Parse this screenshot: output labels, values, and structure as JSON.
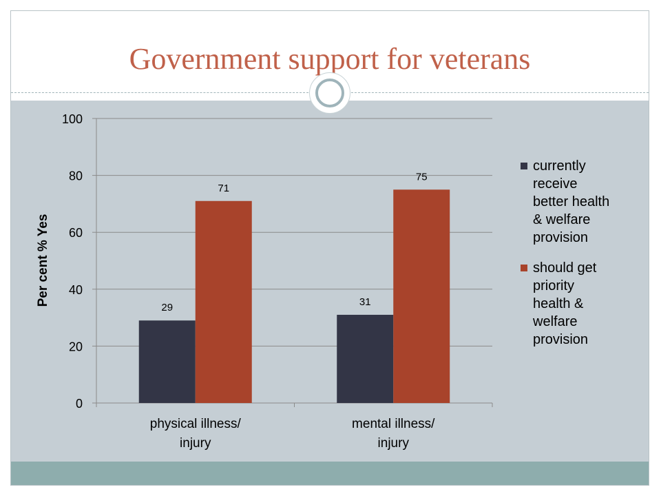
{
  "title": "Government support for veterans",
  "chart_data": {
    "type": "bar",
    "categories": [
      "physical illness/ injury",
      "mental illness/ injury"
    ],
    "category_lines": [
      [
        "physical illness/",
        "injury"
      ],
      [
        "mental illness/",
        "injury"
      ]
    ],
    "series": [
      {
        "name": "currently receive better health & welfare provision",
        "values": [
          29,
          31
        ],
        "color": "#333546"
      },
      {
        "name": "should get priority health & welfare provision",
        "values": [
          71,
          75
        ],
        "color": "#a8432b"
      }
    ],
    "legend_lines": [
      [
        "currently",
        "receive",
        "better health",
        "& welfare",
        "provision"
      ],
      [
        "should get",
        "priority",
        "health &",
        "welfare",
        "provision"
      ]
    ],
    "ylabel": "Per cent % Yes",
    "ylim": [
      0,
      100
    ],
    "yticks": [
      0,
      20,
      40,
      60,
      80,
      100
    ],
    "grid": true,
    "legend_position": "right"
  }
}
